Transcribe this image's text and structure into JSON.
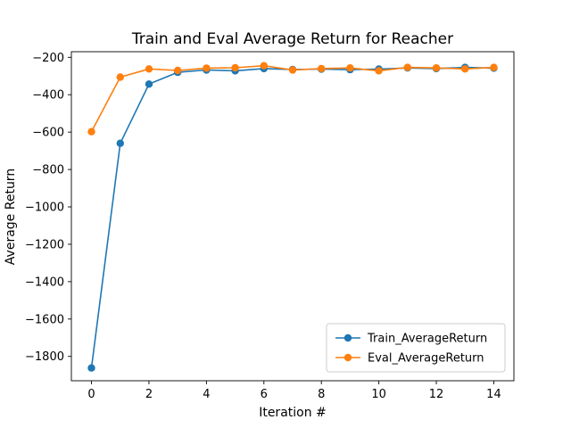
{
  "chart_data": {
    "type": "line",
    "title": "Train and Eval Average Return for Reacher",
    "xlabel": "Iteration #",
    "ylabel": "Average Return",
    "xlim": [
      -0.7,
      14.7
    ],
    "ylim": [
      -1930,
      -170
    ],
    "x": [
      0,
      1,
      2,
      3,
      4,
      5,
      6,
      7,
      8,
      9,
      10,
      11,
      12,
      13,
      14
    ],
    "xticks": [
      0,
      2,
      4,
      6,
      8,
      10,
      12,
      14
    ],
    "yticks": [
      -200,
      -400,
      -600,
      -800,
      -1000,
      -1200,
      -1400,
      -1600,
      -1800
    ],
    "tick_minus": "−",
    "grid": false,
    "legend_position": "lower-right",
    "series": [
      {
        "name": "Train_AverageReturn",
        "color": "#1f77b4",
        "marker": "circle",
        "values": [
          -1862,
          -660,
          -343,
          -280,
          -268,
          -272,
          -260,
          -265,
          -263,
          -266,
          -263,
          -257,
          -260,
          -254,
          -258
        ]
      },
      {
        "name": "Eval_AverageReturn",
        "color": "#ff7f0e",
        "marker": "circle",
        "values": [
          -598,
          -306,
          -262,
          -270,
          -258,
          -256,
          -245,
          -268,
          -260,
          -257,
          -272,
          -254,
          -257,
          -262,
          -254
        ]
      }
    ]
  }
}
